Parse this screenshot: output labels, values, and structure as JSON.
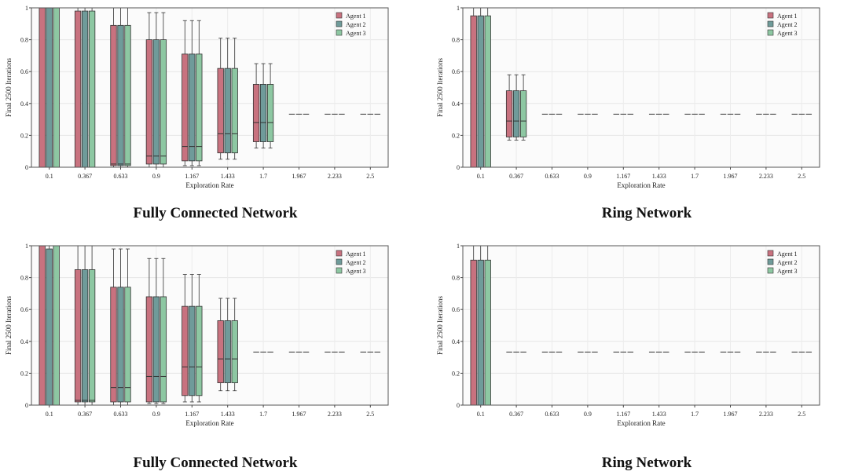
{
  "colors": {
    "agent1": "#c8727f",
    "agent2": "#6f9b9a",
    "agent3": "#8dc7a2"
  },
  "chart_data": [
    {
      "type": "box",
      "caption": "Fully Connected Network",
      "xlabel": "Exploration Rate",
      "ylabel": "Final 2500 Iterations",
      "ylim": [
        0,
        1
      ],
      "yticks": [
        "0",
        "0.2",
        "0.4",
        "0.6",
        "0.8",
        "1"
      ],
      "categories": [
        "0.1",
        "0.367",
        "0.633",
        "0.9",
        "1.167",
        "1.433",
        "1.7",
        "1.967",
        "2.233",
        "2.5"
      ],
      "legend": "top-right",
      "series": [
        {
          "name": "Agent 1",
          "boxes": [
            [
              0,
              0,
              0,
              1,
              1
            ],
            [
              0,
              0,
              0,
              0.98,
              1
            ],
            [
              0,
              0.01,
              0.02,
              0.89,
              1
            ],
            [
              0,
              0.02,
              0.07,
              0.8,
              0.97
            ],
            [
              0.01,
              0.04,
              0.13,
              0.71,
              0.92
            ],
            [
              0.05,
              0.09,
              0.21,
              0.62,
              0.81
            ],
            [
              0.12,
              0.16,
              0.28,
              0.52,
              0.65
            ],
            [
              0.333,
              0.333,
              0.333,
              0.333,
              0.333
            ],
            [
              0.333,
              0.333,
              0.333,
              0.333,
              0.333
            ],
            [
              0.333,
              0.333,
              0.333,
              0.333,
              0.333
            ]
          ]
        },
        {
          "name": "Agent 2",
          "boxes": [
            [
              0,
              0,
              0,
              1,
              1
            ],
            [
              0,
              0,
              0,
              0.98,
              1
            ],
            [
              0,
              0.01,
              0.02,
              0.89,
              1
            ],
            [
              0,
              0.02,
              0.07,
              0.8,
              0.97
            ],
            [
              0.01,
              0.04,
              0.13,
              0.71,
              0.92
            ],
            [
              0.05,
              0.09,
              0.21,
              0.62,
              0.81
            ],
            [
              0.12,
              0.16,
              0.28,
              0.52,
              0.65
            ],
            [
              0.333,
              0.333,
              0.333,
              0.333,
              0.333
            ],
            [
              0.333,
              0.333,
              0.333,
              0.333,
              0.333
            ],
            [
              0.333,
              0.333,
              0.333,
              0.333,
              0.333
            ]
          ]
        },
        {
          "name": "Agent 3",
          "boxes": [
            [
              0,
              0,
              0,
              1,
              1
            ],
            [
              0,
              0,
              0,
              0.98,
              1
            ],
            [
              0,
              0.01,
              0.02,
              0.89,
              1
            ],
            [
              0,
              0.02,
              0.07,
              0.8,
              0.97
            ],
            [
              0.01,
              0.04,
              0.13,
              0.71,
              0.92
            ],
            [
              0.05,
              0.09,
              0.21,
              0.62,
              0.81
            ],
            [
              0.12,
              0.16,
              0.28,
              0.52,
              0.65
            ],
            [
              0.333,
              0.333,
              0.333,
              0.333,
              0.333
            ],
            [
              0.333,
              0.333,
              0.333,
              0.333,
              0.333
            ],
            [
              0.333,
              0.333,
              0.333,
              0.333,
              0.333
            ]
          ]
        }
      ]
    },
    {
      "type": "box",
      "caption": "Ring Network",
      "xlabel": "Exploration Rate",
      "ylabel": "Final 2500 Iterations",
      "ylim": [
        0,
        1
      ],
      "yticks": [
        "0",
        "0.2",
        "0.4",
        "0.6",
        "0.8",
        "1"
      ],
      "categories": [
        "0.1",
        "0.367",
        "0.633",
        "0.9",
        "1.167",
        "1.433",
        "1.7",
        "1.967",
        "2.233",
        "2.5"
      ],
      "legend": "top-right",
      "series": [
        {
          "name": "Agent 1",
          "boxes": [
            [
              0,
              0,
              0,
              0.95,
              1
            ],
            [
              0.17,
              0.19,
              0.29,
              0.48,
              0.58
            ],
            [
              0.333,
              0.333,
              0.333,
              0.333,
              0.333
            ],
            [
              0.333,
              0.333,
              0.333,
              0.333,
              0.333
            ],
            [
              0.333,
              0.333,
              0.333,
              0.333,
              0.333
            ],
            [
              0.333,
              0.333,
              0.333,
              0.333,
              0.333
            ],
            [
              0.333,
              0.333,
              0.333,
              0.333,
              0.333
            ],
            [
              0.333,
              0.333,
              0.333,
              0.333,
              0.333
            ],
            [
              0.333,
              0.333,
              0.333,
              0.333,
              0.333
            ],
            [
              0.333,
              0.333,
              0.333,
              0.333,
              0.333
            ]
          ]
        },
        {
          "name": "Agent 2",
          "boxes": [
            [
              0,
              0,
              0,
              0.95,
              1
            ],
            [
              0.17,
              0.19,
              0.29,
              0.48,
              0.58
            ],
            [
              0.333,
              0.333,
              0.333,
              0.333,
              0.333
            ],
            [
              0.333,
              0.333,
              0.333,
              0.333,
              0.333
            ],
            [
              0.333,
              0.333,
              0.333,
              0.333,
              0.333
            ],
            [
              0.333,
              0.333,
              0.333,
              0.333,
              0.333
            ],
            [
              0.333,
              0.333,
              0.333,
              0.333,
              0.333
            ],
            [
              0.333,
              0.333,
              0.333,
              0.333,
              0.333
            ],
            [
              0.333,
              0.333,
              0.333,
              0.333,
              0.333
            ],
            [
              0.333,
              0.333,
              0.333,
              0.333,
              0.333
            ]
          ]
        },
        {
          "name": "Agent 3",
          "boxes": [
            [
              0,
              0,
              0,
              0.95,
              1
            ],
            [
              0.17,
              0.19,
              0.29,
              0.48,
              0.58
            ],
            [
              0.333,
              0.333,
              0.333,
              0.333,
              0.333
            ],
            [
              0.333,
              0.333,
              0.333,
              0.333,
              0.333
            ],
            [
              0.333,
              0.333,
              0.333,
              0.333,
              0.333
            ],
            [
              0.333,
              0.333,
              0.333,
              0.333,
              0.333
            ],
            [
              0.333,
              0.333,
              0.333,
              0.333,
              0.333
            ],
            [
              0.333,
              0.333,
              0.333,
              0.333,
              0.333
            ],
            [
              0.333,
              0.333,
              0.333,
              0.333,
              0.333
            ],
            [
              0.333,
              0.333,
              0.333,
              0.333,
              0.333
            ]
          ]
        }
      ]
    },
    {
      "type": "box",
      "caption": "Fully Connected Network",
      "xlabel": "Exploration Rate",
      "ylabel": "Final 2500 Iterations",
      "ylim": [
        0,
        1
      ],
      "yticks": [
        "0",
        "0.2",
        "0.4",
        "0.6",
        "0.8",
        "1"
      ],
      "categories": [
        "0.1",
        "0.367",
        "0.633",
        "0.9",
        "1.167",
        "1.433",
        "1.7",
        "1.967",
        "2.233",
        "2.5"
      ],
      "legend": "top-right",
      "series": [
        {
          "name": "Agent 1",
          "boxes": [
            [
              0,
              0,
              0,
              1,
              1
            ],
            [
              0,
              0.02,
              0.03,
              0.85,
              1
            ],
            [
              0,
              0.02,
              0.11,
              0.74,
              0.98
            ],
            [
              0.01,
              0.02,
              0.18,
              0.68,
              0.92
            ],
            [
              0.02,
              0.06,
              0.24,
              0.62,
              0.82
            ],
            [
              0.09,
              0.14,
              0.29,
              0.53,
              0.67
            ],
            [
              0.333,
              0.333,
              0.333,
              0.333,
              0.333
            ],
            [
              0.333,
              0.333,
              0.333,
              0.333,
              0.333
            ],
            [
              0.333,
              0.333,
              0.333,
              0.333,
              0.333
            ],
            [
              0.333,
              0.333,
              0.333,
              0.333,
              0.333
            ]
          ]
        },
        {
          "name": "Agent 2",
          "boxes": [
            [
              0,
              0,
              0,
              0.98,
              1
            ],
            [
              0,
              0.02,
              0.03,
              0.85,
              1
            ],
            [
              0,
              0.02,
              0.11,
              0.74,
              0.98
            ],
            [
              0.01,
              0.02,
              0.18,
              0.68,
              0.92
            ],
            [
              0.02,
              0.06,
              0.24,
              0.62,
              0.82
            ],
            [
              0.09,
              0.14,
              0.29,
              0.53,
              0.67
            ],
            [
              0.333,
              0.333,
              0.333,
              0.333,
              0.333
            ],
            [
              0.333,
              0.333,
              0.333,
              0.333,
              0.333
            ],
            [
              0.333,
              0.333,
              0.333,
              0.333,
              0.333
            ],
            [
              0.333,
              0.333,
              0.333,
              0.333,
              0.333
            ]
          ]
        },
        {
          "name": "Agent 3",
          "boxes": [
            [
              0,
              0,
              0,
              1,
              1
            ],
            [
              0,
              0.02,
              0.03,
              0.85,
              1
            ],
            [
              0,
              0.02,
              0.11,
              0.74,
              0.98
            ],
            [
              0.01,
              0.02,
              0.18,
              0.68,
              0.92
            ],
            [
              0.02,
              0.06,
              0.24,
              0.62,
              0.82
            ],
            [
              0.09,
              0.14,
              0.29,
              0.53,
              0.67
            ],
            [
              0.333,
              0.333,
              0.333,
              0.333,
              0.333
            ],
            [
              0.333,
              0.333,
              0.333,
              0.333,
              0.333
            ],
            [
              0.333,
              0.333,
              0.333,
              0.333,
              0.333
            ],
            [
              0.333,
              0.333,
              0.333,
              0.333,
              0.333
            ]
          ]
        }
      ]
    },
    {
      "type": "box",
      "caption": "Ring Network",
      "xlabel": "Exploration Rate",
      "ylabel": "Final 2500 Iterations",
      "ylim": [
        0,
        1
      ],
      "yticks": [
        "0",
        "0.2",
        "0.4",
        "0.6",
        "0.8",
        "1"
      ],
      "categories": [
        "0.1",
        "0.367",
        "0.633",
        "0.9",
        "1.167",
        "1.433",
        "1.7",
        "1.967",
        "2.233",
        "2.5"
      ],
      "legend": "top-right",
      "series": [
        {
          "name": "Agent 1",
          "boxes": [
            [
              0,
              0,
              0,
              0.91,
              1
            ],
            [
              0.333,
              0.333,
              0.333,
              0.333,
              0.333
            ],
            [
              0.333,
              0.333,
              0.333,
              0.333,
              0.333
            ],
            [
              0.333,
              0.333,
              0.333,
              0.333,
              0.333
            ],
            [
              0.333,
              0.333,
              0.333,
              0.333,
              0.333
            ],
            [
              0.333,
              0.333,
              0.333,
              0.333,
              0.333
            ],
            [
              0.333,
              0.333,
              0.333,
              0.333,
              0.333
            ],
            [
              0.333,
              0.333,
              0.333,
              0.333,
              0.333
            ],
            [
              0.333,
              0.333,
              0.333,
              0.333,
              0.333
            ],
            [
              0.333,
              0.333,
              0.333,
              0.333,
              0.333
            ]
          ]
        },
        {
          "name": "Agent 2",
          "boxes": [
            [
              0,
              0,
              0,
              0.91,
              1
            ],
            [
              0.333,
              0.333,
              0.333,
              0.333,
              0.333
            ],
            [
              0.333,
              0.333,
              0.333,
              0.333,
              0.333
            ],
            [
              0.333,
              0.333,
              0.333,
              0.333,
              0.333
            ],
            [
              0.333,
              0.333,
              0.333,
              0.333,
              0.333
            ],
            [
              0.333,
              0.333,
              0.333,
              0.333,
              0.333
            ],
            [
              0.333,
              0.333,
              0.333,
              0.333,
              0.333
            ],
            [
              0.333,
              0.333,
              0.333,
              0.333,
              0.333
            ],
            [
              0.333,
              0.333,
              0.333,
              0.333,
              0.333
            ],
            [
              0.333,
              0.333,
              0.333,
              0.333,
              0.333
            ]
          ]
        },
        {
          "name": "Agent 3",
          "boxes": [
            [
              0,
              0,
              0,
              0.91,
              1
            ],
            [
              0.333,
              0.333,
              0.333,
              0.333,
              0.333
            ],
            [
              0.333,
              0.333,
              0.333,
              0.333,
              0.333
            ],
            [
              0.333,
              0.333,
              0.333,
              0.333,
              0.333
            ],
            [
              0.333,
              0.333,
              0.333,
              0.333,
              0.333
            ],
            [
              0.333,
              0.333,
              0.333,
              0.333,
              0.333
            ],
            [
              0.333,
              0.333,
              0.333,
              0.333,
              0.333
            ],
            [
              0.333,
              0.333,
              0.333,
              0.333,
              0.333
            ],
            [
              0.333,
              0.333,
              0.333,
              0.333,
              0.333
            ],
            [
              0.333,
              0.333,
              0.333,
              0.333,
              0.333
            ]
          ]
        }
      ]
    }
  ]
}
